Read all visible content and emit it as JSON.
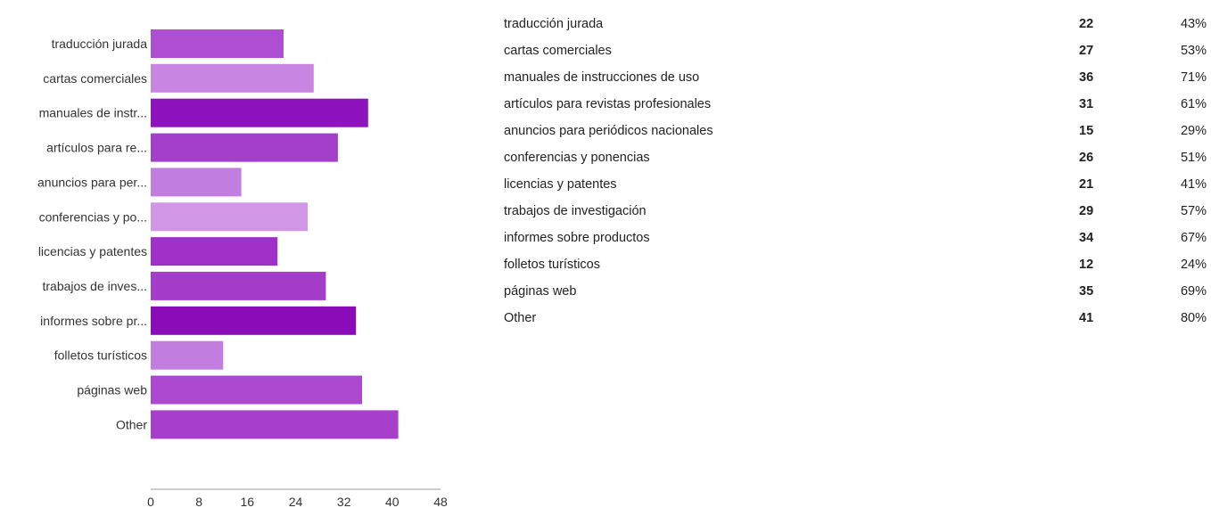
{
  "chart_data": {
    "type": "bar",
    "orientation": "horizontal",
    "categories": [
      "traducción jurada",
      "cartas comerciales",
      "manuales de instr...",
      "artículos para re...",
      "anuncios para per...",
      "conferencias y po...",
      "licencias y patentes",
      "trabajos de inves...",
      "informes sobre pr...",
      "folletos turísticos",
      "páginas web",
      "Other"
    ],
    "values": [
      22,
      27,
      36,
      31,
      15,
      26,
      21,
      29,
      34,
      12,
      35,
      41
    ],
    "bar_colors": [
      "#ad4fd0",
      "#c985e2",
      "#8e12bd",
      "#a43fcc",
      "#c27ede",
      "#d196e6",
      "#9f30c8",
      "#a63cca",
      "#8a0bb8",
      "#c27ede",
      "#ad48d0",
      "#a83fcc"
    ],
    "xlim": [
      0,
      48
    ],
    "xticks": [
      0,
      8,
      16,
      24,
      32,
      40,
      48
    ],
    "title": "",
    "xlabel": "",
    "ylabel": "",
    "grid": false,
    "legend": "none"
  },
  "summary": {
    "rows": [
      {
        "label": "traducción jurada",
        "count": "22",
        "percent": "43%"
      },
      {
        "label": "cartas comerciales",
        "count": "27",
        "percent": "53%"
      },
      {
        "label": "manuales de instrucciones de uso",
        "count": "36",
        "percent": "71%"
      },
      {
        "label": "artículos para revistas profesionales",
        "count": "31",
        "percent": "61%"
      },
      {
        "label": "anuncios para periódicos nacionales",
        "count": "15",
        "percent": "29%"
      },
      {
        "label": "conferencias y ponencias",
        "count": "26",
        "percent": "51%"
      },
      {
        "label": "licencias y patentes",
        "count": "21",
        "percent": "41%"
      },
      {
        "label": "trabajos de investigación",
        "count": "29",
        "percent": "57%"
      },
      {
        "label": "informes sobre productos",
        "count": "34",
        "percent": "67%"
      },
      {
        "label": "folletos turísticos",
        "count": "12",
        "percent": "24%"
      },
      {
        "label": "páginas web",
        "count": "35",
        "percent": "69%"
      },
      {
        "label": "Other",
        "count": "41",
        "percent": "80%"
      }
    ]
  }
}
